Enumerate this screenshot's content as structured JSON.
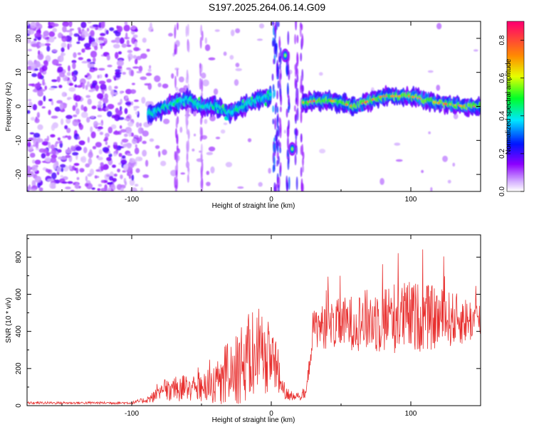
{
  "title": "S197.2025.264.06.14.G09",
  "chart_data": [
    {
      "type": "heatmap",
      "xlabel": "Height of straight line (km)",
      "ylabel": "Frequency (Hz)",
      "xlim": [
        -175,
        150
      ],
      "ylim": [
        -25,
        25
      ],
      "xticks": [
        -100,
        0,
        100
      ],
      "yticks": [
        -20,
        -10,
        0,
        10,
        20
      ],
      "colorbar": {
        "label": "Normalized spectral amplitude",
        "range": [
          0,
          0.9
        ],
        "ticks": [
          "0.0",
          "0.2",
          "0.4",
          "0.6",
          "0.8"
        ]
      },
      "ridge": {
        "x": [
          -85,
          -70,
          -60,
          -50,
          -40,
          -30,
          -20,
          -10,
          0,
          20,
          40,
          60,
          80,
          100,
          120,
          140,
          150
        ],
        "frequency": [
          -2,
          1,
          2,
          0,
          0,
          -2,
          0,
          2,
          3,
          1,
          2,
          0,
          3,
          3,
          1,
          0,
          0
        ]
      },
      "features": [
        {
          "x": 10,
          "frequency": 15
        },
        {
          "x": 15,
          "frequency": -12.5
        }
      ]
    },
    {
      "type": "line",
      "xlabel": "Height of straight line (km)",
      "ylabel": "SNR (10 * v/v)",
      "xlim": [
        -175,
        150
      ],
      "ylim": [
        0,
        920
      ],
      "xticks": [
        -100,
        0,
        100
      ],
      "yticks": [
        0,
        200,
        400,
        600,
        800
      ],
      "color": "#e8302f",
      "envelope": {
        "x": [
          -175,
          -100,
          -90,
          -80,
          -60,
          -40,
          -20,
          0,
          10,
          20,
          25,
          30,
          40,
          60,
          80,
          100,
          120,
          140,
          150
        ],
        "mean": [
          15,
          15,
          30,
          60,
          80,
          100,
          180,
          260,
          50,
          45,
          60,
          420,
          430,
          450,
          470,
          480,
          470,
          460,
          460
        ],
        "spread": [
          8,
          8,
          20,
          50,
          70,
          110,
          200,
          220,
          30,
          20,
          30,
          120,
          150,
          180,
          230,
          230,
          200,
          150,
          120
        ]
      }
    }
  ]
}
